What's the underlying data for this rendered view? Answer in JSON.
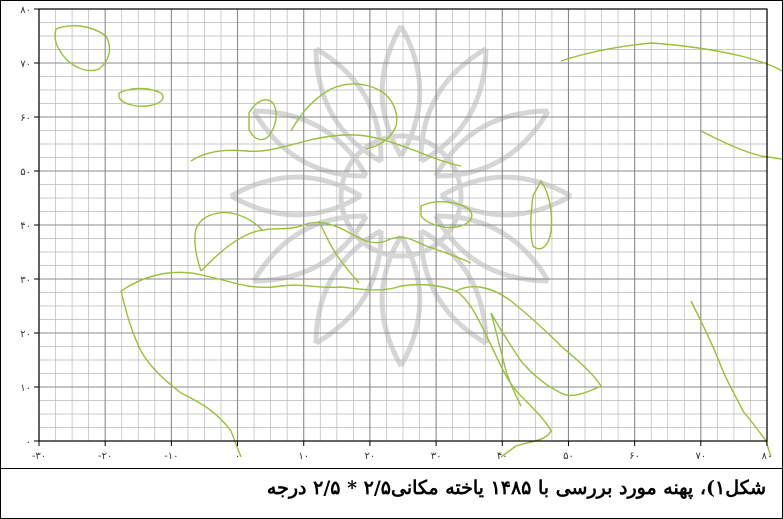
{
  "caption": "شکل۱)، پهنه مورد بررسی با ۱۴۸۵ یاخته مکانی۲/۵ * ۲/۵ درجه",
  "map": {
    "x_axis_ticks": [
      "-۳۰",
      "-۲۰",
      "-۱۰",
      "۰",
      "۱۰",
      "۲۰",
      "۳۰",
      "۴۰",
      "۵۰",
      "۶۰",
      "۷۰",
      "۸۰"
    ],
    "y_axis_ticks": [
      "۰",
      "۱۰",
      "۲۰",
      "۳۰",
      "۴۰",
      "۵۰",
      "۶۰",
      "۷۰",
      "۸۰"
    ],
    "lon_range": [
      -30,
      80
    ],
    "lat_range": [
      0,
      80
    ],
    "grid_cell_degrees": 2.5,
    "grid": true,
    "colors": {
      "coastline": "#9bbf3a",
      "grid": "#b8b8b8",
      "major_grid": "#8a8a8a",
      "watermark": "#c9c9c9"
    }
  }
}
